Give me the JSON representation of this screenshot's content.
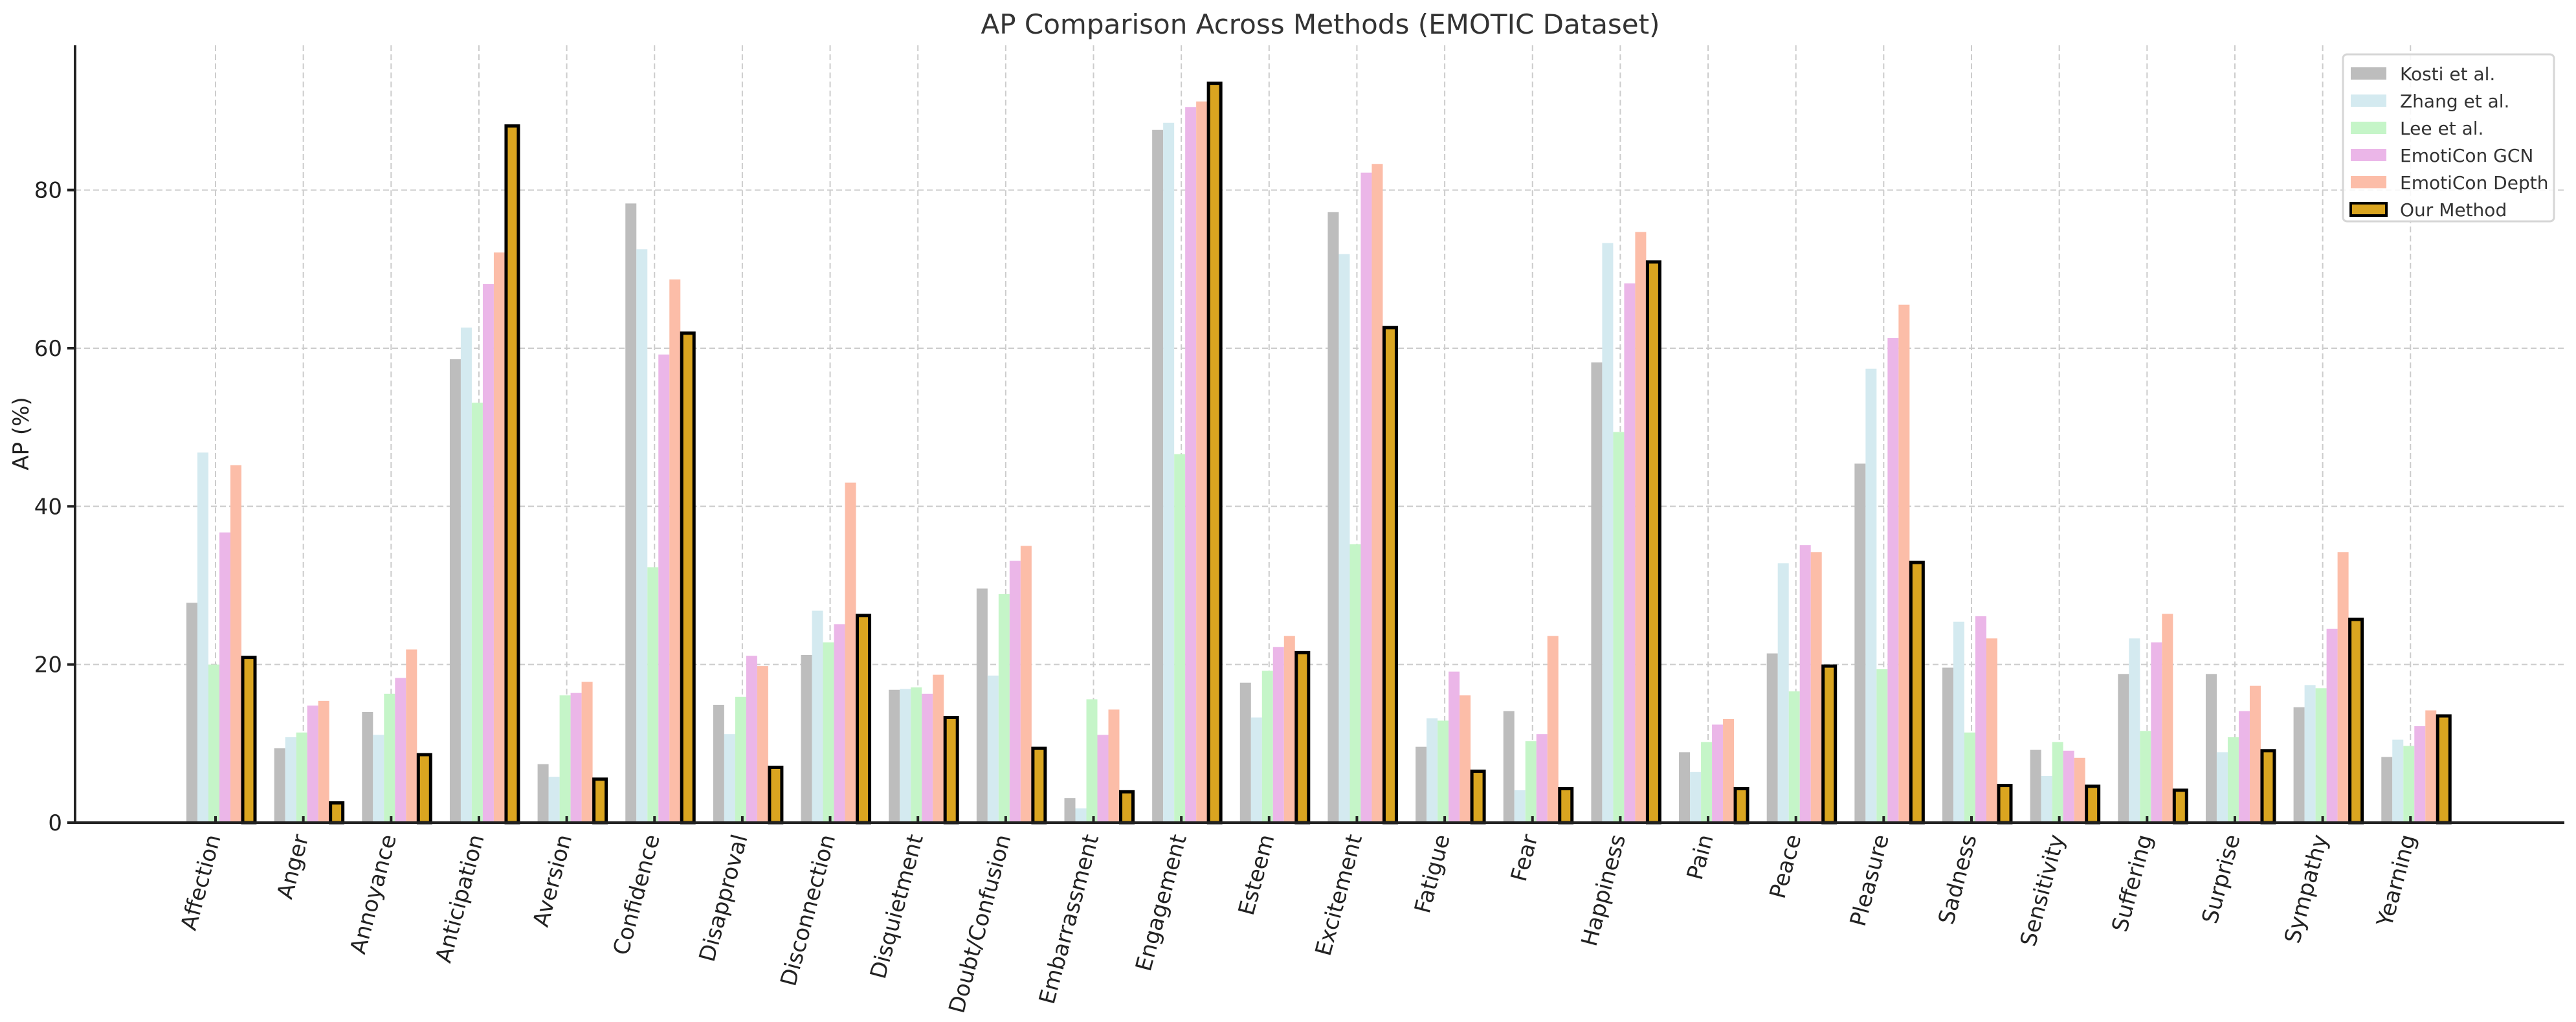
{
  "chart_data": {
    "type": "bar",
    "title": "AP Comparison Across Methods (EMOTIC Dataset)",
    "xlabel": "",
    "ylabel": "AP (%)",
    "ylim": [
      0,
      98.3
    ],
    "yticks": [
      0,
      20,
      40,
      60,
      80
    ],
    "grid": true,
    "legend_position": "top-right",
    "categories": [
      "Affection",
      "Anger",
      "Annoyance",
      "Anticipation",
      "Aversion",
      "Confidence",
      "Disapproval",
      "Disconnection",
      "Disquietment",
      "Doubt/Confusion",
      "Embarrassment",
      "Engagement",
      "Esteem",
      "Excitement",
      "Fatigue",
      "Fear",
      "Happiness",
      "Pain",
      "Peace",
      "Pleasure",
      "Sadness",
      "Sensitivity",
      "Suffering",
      "Surprise",
      "Sympathy",
      "Yearning"
    ],
    "series": [
      {
        "name": "Kosti et al.",
        "color": "#bdbdbd",
        "outlined": false,
        "values": [
          27.8,
          9.4,
          14.0,
          58.6,
          7.4,
          78.3,
          14.9,
          21.2,
          16.8,
          29.6,
          3.1,
          87.6,
          17.7,
          77.2,
          9.6,
          14.1,
          58.2,
          8.9,
          21.4,
          45.4,
          19.6,
          9.2,
          18.8,
          18.8,
          14.6,
          8.3
        ]
      },
      {
        "name": "Zhang et al.",
        "color": "#d4eaf0",
        "outlined": false,
        "values": [
          46.8,
          10.8,
          11.1,
          62.6,
          5.8,
          72.5,
          11.2,
          26.8,
          16.9,
          18.6,
          1.8,
          88.5,
          13.3,
          71.9,
          13.2,
          4.1,
          73.3,
          6.4,
          32.8,
          57.4,
          25.4,
          5.9,
          23.3,
          8.9,
          17.4,
          10.5
        ]
      },
      {
        "name": "Lee et al.",
        "color": "#c5f5c8",
        "outlined": false,
        "values": [
          20.0,
          11.4,
          16.3,
          53.1,
          16.1,
          32.3,
          15.9,
          22.8,
          17.1,
          28.9,
          15.6,
          46.6,
          19.2,
          35.2,
          12.9,
          10.3,
          49.4,
          10.2,
          16.6,
          19.4,
          11.4,
          10.2,
          11.6,
          10.8,
          17.0,
          9.7
        ]
      },
      {
        "name": "EmotiCon GCN",
        "color": "#ebb6e8",
        "outlined": false,
        "values": [
          36.7,
          14.8,
          18.3,
          68.1,
          16.4,
          59.2,
          21.1,
          25.1,
          16.3,
          33.1,
          11.1,
          90.5,
          22.2,
          82.2,
          19.1,
          11.2,
          68.2,
          12.4,
          35.1,
          61.3,
          26.1,
          9.1,
          22.8,
          14.1,
          24.5,
          12.2
        ]
      },
      {
        "name": "EmotiCon Depth",
        "color": "#fcbda8",
        "outlined": false,
        "values": [
          45.2,
          15.4,
          21.9,
          72.1,
          17.8,
          68.7,
          19.8,
          43.0,
          18.7,
          35.0,
          14.3,
          91.2,
          23.6,
          83.3,
          16.1,
          23.6,
          74.7,
          13.1,
          34.2,
          65.5,
          23.3,
          8.2,
          26.4,
          17.3,
          34.2,
          14.2
        ]
      },
      {
        "name": "Our Method",
        "color": "#daa520",
        "outlined": true,
        "values": [
          20.9,
          2.5,
          8.6,
          88.1,
          5.5,
          61.9,
          7.0,
          26.2,
          13.3,
          9.4,
          3.9,
          93.5,
          21.5,
          62.6,
          6.5,
          4.3,
          70.9,
          4.3,
          19.8,
          32.9,
          4.7,
          4.6,
          4.1,
          9.1,
          25.7,
          13.5
        ]
      }
    ]
  }
}
